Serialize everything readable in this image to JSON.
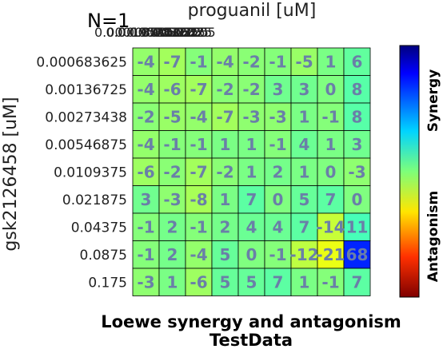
{
  "chart_data": {
    "type": "heatmap",
    "annotation": "N=1",
    "title": "Loewe synergy and antagonism",
    "subtitle": "TestData",
    "xlabel": "proguanil [uM]",
    "ylabel": "gsk2126458 [uM]",
    "x_tick_labels": [
      "0.0001953125",
      "0.000390625",
      "0.00078125",
      "0.0015625",
      "0.003125",
      "0.00625",
      "0.0125",
      "0.025",
      "0.05"
    ],
    "y_tick_labels": [
      "0.000683625",
      "0.00136725",
      "0.00273438",
      "0.00546875",
      "0.0109375",
      "0.021875",
      "0.04375",
      "0.0875",
      "0.175"
    ],
    "values": [
      [
        -4,
        -7,
        -1,
        -4,
        -2,
        -1,
        -5,
        1,
        6
      ],
      [
        -4,
        -6,
        -7,
        -2,
        -2,
        3,
        3,
        0,
        8
      ],
      [
        -2,
        -5,
        -4,
        -7,
        -3,
        -3,
        1,
        -1,
        8
      ],
      [
        -4,
        -1,
        -1,
        1,
        1,
        -1,
        4,
        1,
        3
      ],
      [
        -6,
        -2,
        -7,
        -2,
        1,
        2,
        1,
        0,
        -3
      ],
      [
        3,
        -3,
        -8,
        1,
        7,
        0,
        5,
        7,
        0
      ],
      [
        -1,
        2,
        -1,
        2,
        4,
        4,
        7,
        -14,
        11
      ],
      [
        -1,
        2,
        -4,
        5,
        0,
        -1,
        -12,
        -21,
        68
      ],
      [
        -3,
        1,
        -6,
        5,
        5,
        7,
        1,
        -1,
        7
      ]
    ],
    "colorbar": {
      "top_label": "Synergy",
      "bottom_label": "Antagonism",
      "colormap": "jet",
      "range": [
        -100,
        100
      ],
      "low_color": "#7f0000",
      "high_color": "#00007f"
    },
    "cell_text_color": "#6a7fa8",
    "grid": true
  }
}
